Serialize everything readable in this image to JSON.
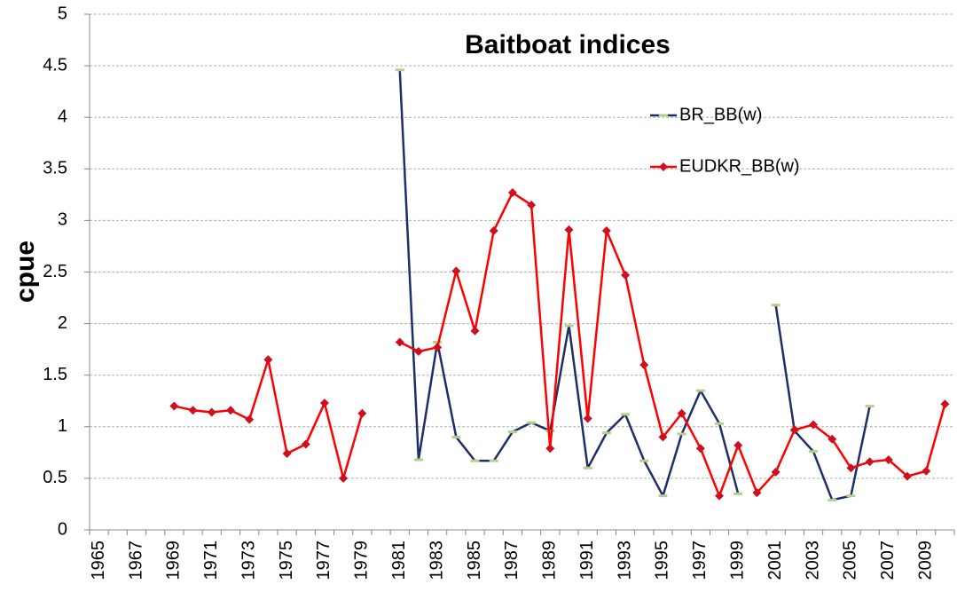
{
  "chart_data": {
    "type": "line",
    "title": "Baitboat indices",
    "y_label": "cpue",
    "categories": [
      "1965",
      null,
      "1967",
      null,
      "1969",
      null,
      "1971",
      null,
      "1973",
      null,
      "1975",
      null,
      "1977",
      null,
      "1979",
      null,
      "1981",
      null,
      "1983",
      null,
      "1985",
      null,
      "1987",
      null,
      "1989",
      null,
      "1991",
      null,
      "1993",
      null,
      "1995",
      null,
      "1997",
      null,
      "1999",
      null,
      "2001",
      null,
      "2003",
      null,
      "2005",
      null,
      "2007",
      null,
      "2009",
      null
    ],
    "series": [
      {
        "name": "BR_BB(w)",
        "color": "#1f2f66",
        "marker_color": "#b5cf8a",
        "values": [
          null,
          null,
          null,
          null,
          null,
          null,
          null,
          null,
          null,
          null,
          null,
          null,
          null,
          null,
          null,
          null,
          4.46,
          0.68,
          1.82,
          0.9,
          0.67,
          0.67,
          0.95,
          1.04,
          0.96,
          1.98,
          0.6,
          0.94,
          1.12,
          0.67,
          0.33,
          0.93,
          1.35,
          1.03,
          0.35,
          null,
          2.18,
          0.96,
          0.76,
          0.29,
          0.33,
          1.2,
          null,
          null,
          null,
          null
        ]
      },
      {
        "name": "EUDKR_BB(w)",
        "color": "#ff0000",
        "marker_color": "#cc1020",
        "values": [
          null,
          null,
          null,
          null,
          1.2,
          1.16,
          1.14,
          1.16,
          1.07,
          1.65,
          0.74,
          0.83,
          1.23,
          0.5,
          1.13,
          null,
          1.82,
          1.73,
          1.77,
          2.51,
          1.93,
          2.9,
          3.27,
          3.15,
          0.79,
          2.91,
          1.08,
          2.9,
          2.47,
          1.6,
          0.9,
          1.13,
          0.79,
          0.33,
          0.82,
          0.36,
          0.56,
          0.97,
          1.02,
          0.88,
          0.6,
          0.66,
          0.68,
          0.52,
          0.57,
          1.22
        ]
      }
    ],
    "ylim": [
      0,
      5
    ],
    "yticks": [
      0,
      0.5,
      1,
      1.5,
      2,
      2.5,
      3,
      3.5,
      4,
      4.5,
      5
    ],
    "grid": true
  }
}
